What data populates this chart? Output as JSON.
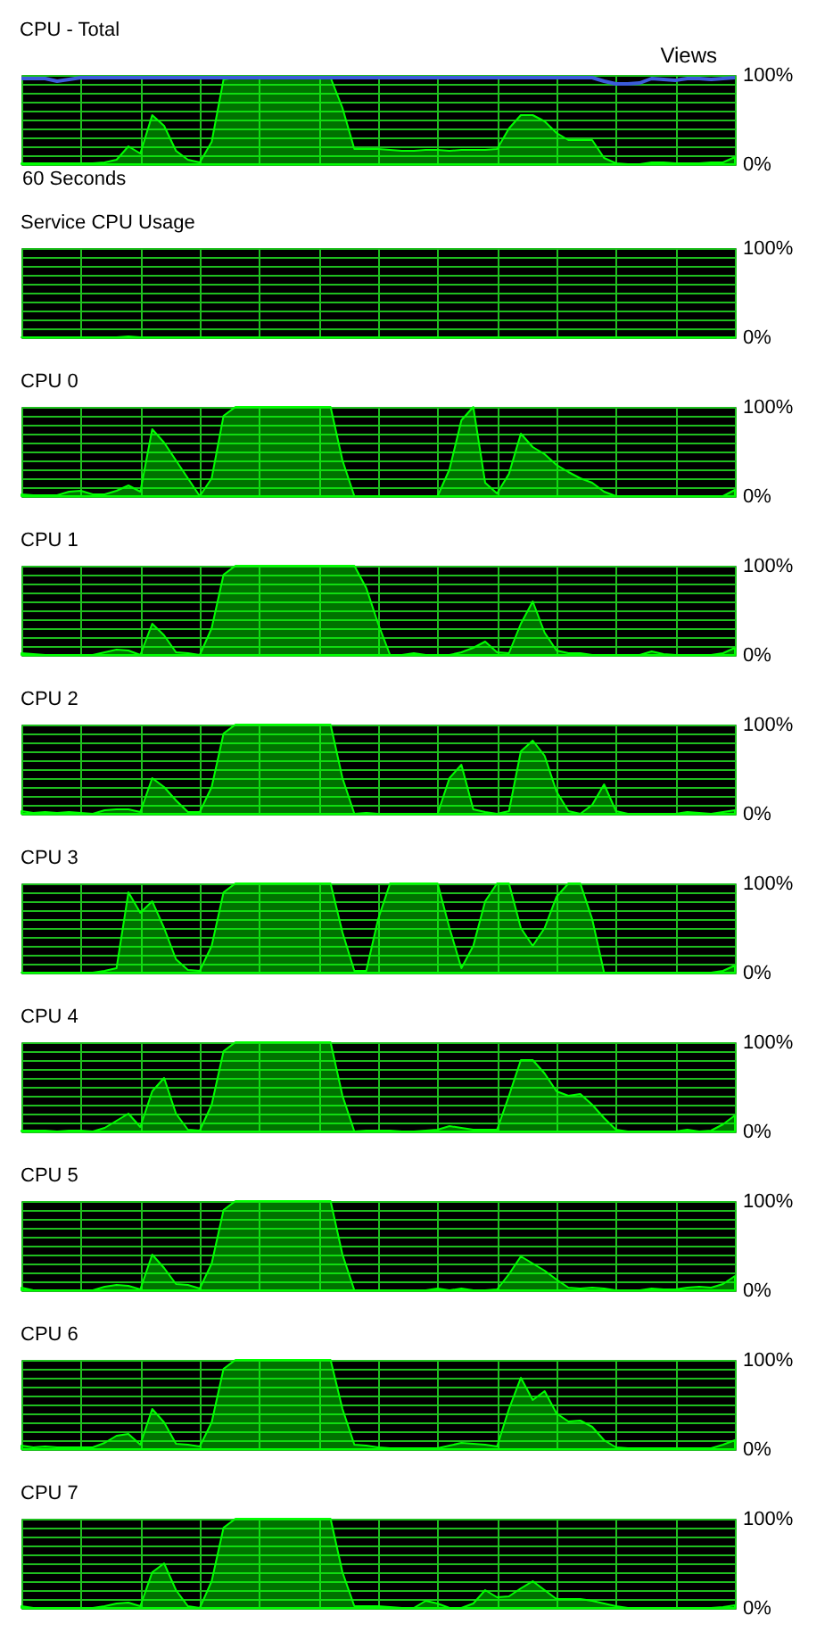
{
  "chart_data": [
    {
      "type": "area",
      "title": "CPU - Total",
      "xlabel": "60 Seconds",
      "annotations": [
        "Views"
      ],
      "grid": true,
      "tick_labels": "y",
      "ylim": [
        0,
        100
      ],
      "yticks": [
        {
          "value": 0,
          "label": "0%"
        },
        {
          "value": 10,
          "label": null
        },
        {
          "value": 20,
          "label": null
        },
        {
          "value": 30,
          "label": null
        },
        {
          "value": 40,
          "label": null
        },
        {
          "value": 50,
          "label": null
        },
        {
          "value": 60,
          "label": null
        },
        {
          "value": 70,
          "label": null
        },
        {
          "value": 80,
          "label": null
        },
        {
          "value": 90,
          "label": null
        },
        {
          "value": 100,
          "label": "100%"
        }
      ],
      "categories": [
        null,
        null,
        null,
        null,
        null,
        null,
        null,
        null,
        null,
        null,
        null,
        null,
        null,
        null,
        null,
        null,
        null,
        null,
        null,
        null,
        null,
        null,
        null,
        null,
        null,
        null,
        null,
        null,
        null,
        null,
        null,
        null,
        null,
        null,
        null,
        null,
        null,
        null,
        null,
        null,
        null,
        null,
        null,
        null,
        null,
        null,
        null,
        null,
        null,
        null,
        null,
        null,
        null,
        null,
        null,
        null,
        null,
        null,
        null,
        null,
        null
      ],
      "series": [
        {
          "color": "#00ff00",
          "values": [
            1,
            1,
            1,
            1,
            1,
            1,
            1,
            2,
            5,
            20,
            12,
            55,
            43,
            15,
            5,
            2,
            25,
            95,
            97,
            97,
            97,
            97,
            97,
            97,
            97,
            97,
            97,
            63,
            17,
            17,
            17,
            16,
            15,
            15,
            16,
            16,
            15,
            16,
            16,
            16,
            17,
            40,
            55,
            55,
            48,
            35,
            27,
            27,
            27,
            7,
            1,
            0,
            0,
            2,
            2,
            1,
            1,
            1,
            2,
            2,
            8
          ]
        },
        {
          "type": "line",
          "color": "#3b5bdb",
          "values": [
            96,
            96,
            96,
            93,
            95,
            97,
            97,
            97,
            97,
            97,
            97,
            97,
            97,
            97,
            97,
            97,
            97,
            97,
            97,
            97,
            97,
            97,
            97,
            97,
            97,
            97,
            97,
            97,
            97,
            97,
            97,
            97,
            97,
            97,
            97,
            97,
            97,
            97,
            97,
            97,
            97,
            97,
            97,
            97,
            97,
            97,
            97,
            97,
            97,
            93,
            90,
            90,
            91,
            96,
            95,
            94,
            96,
            96,
            95,
            96,
            97
          ]
        }
      ]
    },
    {
      "type": "area",
      "title": "Service CPU Usage",
      "grid": true,
      "tick_labels": "y",
      "ylim": [
        0,
        100
      ],
      "yticks": [
        {
          "value": 0,
          "label": "0%"
        },
        {
          "value": 10,
          "label": null
        },
        {
          "value": 20,
          "label": null
        },
        {
          "value": 30,
          "label": null
        },
        {
          "value": 40,
          "label": null
        },
        {
          "value": 50,
          "label": null
        },
        {
          "value": 60,
          "label": null
        },
        {
          "value": 70,
          "label": null
        },
        {
          "value": 80,
          "label": null
        },
        {
          "value": 90,
          "label": null
        },
        {
          "value": 100,
          "label": "100%"
        }
      ],
      "categories": [
        null,
        null,
        null,
        null,
        null,
        null,
        null,
        null,
        null,
        null,
        null,
        null,
        null,
        null,
        null,
        null,
        null,
        null,
        null,
        null,
        null,
        null,
        null,
        null,
        null,
        null,
        null,
        null,
        null,
        null,
        null,
        null,
        null,
        null,
        null,
        null,
        null,
        null,
        null,
        null,
        null,
        null,
        null,
        null,
        null,
        null,
        null,
        null,
        null,
        null,
        null,
        null,
        null,
        null,
        null,
        null,
        null,
        null,
        null,
        null,
        null
      ],
      "series": [
        {
          "color": "#00ff00",
          "values": [
            0,
            0,
            0,
            0,
            0,
            0,
            0,
            0,
            0,
            1,
            0,
            0,
            0,
            0,
            0,
            0,
            0,
            0,
            0,
            0,
            0,
            0,
            0,
            0,
            0,
            0,
            0,
            0,
            0,
            0,
            0,
            0,
            0,
            0,
            0,
            0,
            0,
            0,
            0,
            0,
            0,
            0,
            0,
            0,
            0,
            0,
            0,
            0,
            0,
            0,
            0,
            0,
            0,
            0,
            0,
            0,
            0,
            0,
            0,
            0,
            0
          ]
        }
      ]
    },
    {
      "type": "area",
      "title": "CPU 0",
      "grid": true,
      "tick_labels": "y",
      "ylim": [
        0,
        100
      ],
      "yticks": [
        {
          "value": 0,
          "label": "0%"
        },
        {
          "value": 10,
          "label": null
        },
        {
          "value": 20,
          "label": null
        },
        {
          "value": 30,
          "label": null
        },
        {
          "value": 40,
          "label": null
        },
        {
          "value": 50,
          "label": null
        },
        {
          "value": 60,
          "label": null
        },
        {
          "value": 70,
          "label": null
        },
        {
          "value": 80,
          "label": null
        },
        {
          "value": 90,
          "label": null
        },
        {
          "value": 100,
          "label": "100%"
        }
      ],
      "categories": [
        null,
        null,
        null,
        null,
        null,
        null,
        null,
        null,
        null,
        null,
        null,
        null,
        null,
        null,
        null,
        null,
        null,
        null,
        null,
        null,
        null,
        null,
        null,
        null,
        null,
        null,
        null,
        null,
        null,
        null,
        null,
        null,
        null,
        null,
        null,
        null,
        null,
        null,
        null,
        null,
        null,
        null,
        null,
        null,
        null,
        null,
        null,
        null,
        null,
        null,
        null,
        null,
        null,
        null,
        null,
        null,
        null,
        null,
        null,
        null,
        null
      ],
      "series": [
        {
          "color": "#00ff00",
          "values": [
            2,
            1,
            1,
            1,
            5,
            6,
            2,
            2,
            6,
            12,
            5,
            75,
            60,
            40,
            20,
            0,
            20,
            90,
            100,
            100,
            100,
            100,
            100,
            100,
            100,
            100,
            100,
            40,
            0,
            0,
            0,
            0,
            0,
            0,
            0,
            0,
            30,
            85,
            100,
            15,
            3,
            25,
            70,
            55,
            47,
            35,
            27,
            20,
            15,
            5,
            0,
            0,
            0,
            0,
            0,
            0,
            0,
            0,
            0,
            0,
            7
          ]
        }
      ]
    },
    {
      "type": "area",
      "title": "CPU 1",
      "grid": true,
      "tick_labels": "y",
      "ylim": [
        0,
        100
      ],
      "yticks": [
        {
          "value": 0,
          "label": "0%"
        },
        {
          "value": 10,
          "label": null
        },
        {
          "value": 20,
          "label": null
        },
        {
          "value": 30,
          "label": null
        },
        {
          "value": 40,
          "label": null
        },
        {
          "value": 50,
          "label": null
        },
        {
          "value": 60,
          "label": null
        },
        {
          "value": 70,
          "label": null
        },
        {
          "value": 80,
          "label": null
        },
        {
          "value": 90,
          "label": null
        },
        {
          "value": 100,
          "label": "100%"
        }
      ],
      "categories": [
        null,
        null,
        null,
        null,
        null,
        null,
        null,
        null,
        null,
        null,
        null,
        null,
        null,
        null,
        null,
        null,
        null,
        null,
        null,
        null,
        null,
        null,
        null,
        null,
        null,
        null,
        null,
        null,
        null,
        null,
        null,
        null,
        null,
        null,
        null,
        null,
        null,
        null,
        null,
        null,
        null,
        null,
        null,
        null,
        null,
        null,
        null,
        null,
        null,
        null,
        null,
        null,
        null,
        null,
        null,
        null,
        null,
        null,
        null,
        null,
        null
      ],
      "series": [
        {
          "color": "#00ff00",
          "values": [
            2,
            1,
            0,
            0,
            0,
            0,
            0,
            3,
            6,
            5,
            0,
            35,
            22,
            3,
            2,
            0,
            30,
            90,
            100,
            100,
            100,
            100,
            100,
            100,
            100,
            100,
            100,
            100,
            100,
            75,
            35,
            0,
            0,
            2,
            0,
            0,
            0,
            3,
            8,
            15,
            3,
            2,
            35,
            60,
            25,
            5,
            2,
            2,
            0,
            0,
            0,
            0,
            0,
            4,
            1,
            0,
            0,
            0,
            0,
            2,
            8
          ]
        }
      ]
    },
    {
      "type": "area",
      "title": "CPU 2",
      "grid": true,
      "tick_labels": "y",
      "ylim": [
        0,
        100
      ],
      "yticks": [
        {
          "value": 0,
          "label": "0%"
        },
        {
          "value": 10,
          "label": null
        },
        {
          "value": 20,
          "label": null
        },
        {
          "value": 30,
          "label": null
        },
        {
          "value": 40,
          "label": null
        },
        {
          "value": 50,
          "label": null
        },
        {
          "value": 60,
          "label": null
        },
        {
          "value": 70,
          "label": null
        },
        {
          "value": 80,
          "label": null
        },
        {
          "value": 90,
          "label": null
        },
        {
          "value": 100,
          "label": "100%"
        }
      ],
      "categories": [
        null,
        null,
        null,
        null,
        null,
        null,
        null,
        null,
        null,
        null,
        null,
        null,
        null,
        null,
        null,
        null,
        null,
        null,
        null,
        null,
        null,
        null,
        null,
        null,
        null,
        null,
        null,
        null,
        null,
        null,
        null,
        null,
        null,
        null,
        null,
        null,
        null,
        null,
        null,
        null,
        null,
        null,
        null,
        null,
        null,
        null,
        null,
        null,
        null,
        null,
        null,
        null,
        null,
        null,
        null,
        null,
        null,
        null,
        null,
        null,
        null
      ],
      "series": [
        {
          "color": "#00ff00",
          "values": [
            3,
            1,
            2,
            1,
            2,
            1,
            0,
            4,
            5,
            5,
            2,
            40,
            30,
            15,
            2,
            2,
            30,
            90,
            100,
            100,
            100,
            100,
            100,
            100,
            100,
            100,
            100,
            40,
            0,
            1,
            0,
            0,
            0,
            0,
            0,
            0,
            40,
            55,
            5,
            2,
            0,
            3,
            70,
            82,
            65,
            25,
            3,
            0,
            10,
            33,
            3,
            0,
            0,
            0,
            0,
            0,
            2,
            1,
            0,
            2,
            4
          ]
        }
      ]
    },
    {
      "type": "area",
      "title": "CPU 3",
      "grid": true,
      "tick_labels": "y",
      "ylim": [
        0,
        100
      ],
      "yticks": [
        {
          "value": 0,
          "label": "0%"
        },
        {
          "value": 10,
          "label": null
        },
        {
          "value": 20,
          "label": null
        },
        {
          "value": 30,
          "label": null
        },
        {
          "value": 40,
          "label": null
        },
        {
          "value": 50,
          "label": null
        },
        {
          "value": 60,
          "label": null
        },
        {
          "value": 70,
          "label": null
        },
        {
          "value": 80,
          "label": null
        },
        {
          "value": 90,
          "label": null
        },
        {
          "value": 100,
          "label": "100%"
        }
      ],
      "categories": [
        null,
        null,
        null,
        null,
        null,
        null,
        null,
        null,
        null,
        null,
        null,
        null,
        null,
        null,
        null,
        null,
        null,
        null,
        null,
        null,
        null,
        null,
        null,
        null,
        null,
        null,
        null,
        null,
        null,
        null,
        null,
        null,
        null,
        null,
        null,
        null,
        null,
        null,
        null,
        null,
        null,
        null,
        null,
        null,
        null,
        null,
        null,
        null,
        null,
        null,
        null,
        null,
        null,
        null,
        null,
        null,
        null,
        null,
        null,
        null,
        null
      ],
      "series": [
        {
          "color": "#00ff00",
          "values": [
            0,
            0,
            0,
            0,
            0,
            0,
            0,
            2,
            5,
            90,
            67,
            80,
            50,
            15,
            3,
            2,
            30,
            90,
            100,
            100,
            100,
            100,
            100,
            100,
            100,
            100,
            100,
            45,
            2,
            2,
            60,
            100,
            100,
            100,
            100,
            100,
            50,
            5,
            30,
            80,
            100,
            100,
            50,
            30,
            50,
            85,
            100,
            100,
            60,
            0,
            0,
            0,
            0,
            0,
            0,
            0,
            0,
            0,
            0,
            2,
            8
          ]
        }
      ]
    },
    {
      "type": "area",
      "title": "CPU 4",
      "grid": true,
      "tick_labels": "y",
      "ylim": [
        0,
        100
      ],
      "yticks": [
        {
          "value": 0,
          "label": "0%"
        },
        {
          "value": 10,
          "label": null
        },
        {
          "value": 20,
          "label": null
        },
        {
          "value": 30,
          "label": null
        },
        {
          "value": 40,
          "label": null
        },
        {
          "value": 50,
          "label": null
        },
        {
          "value": 60,
          "label": null
        },
        {
          "value": 70,
          "label": null
        },
        {
          "value": 80,
          "label": null
        },
        {
          "value": 90,
          "label": null
        },
        {
          "value": 100,
          "label": "100%"
        }
      ],
      "categories": [
        null,
        null,
        null,
        null,
        null,
        null,
        null,
        null,
        null,
        null,
        null,
        null,
        null,
        null,
        null,
        null,
        null,
        null,
        null,
        null,
        null,
        null,
        null,
        null,
        null,
        null,
        null,
        null,
        null,
        null,
        null,
        null,
        null,
        null,
        null,
        null,
        null,
        null,
        null,
        null,
        null,
        null,
        null,
        null,
        null,
        null,
        null,
        null,
        null,
        null,
        null,
        null,
        null,
        null,
        null,
        null,
        null,
        null,
        null,
        null,
        null
      ],
      "series": [
        {
          "color": "#00ff00",
          "values": [
            1,
            1,
            1,
            0,
            1,
            1,
            0,
            4,
            12,
            20,
            5,
            45,
            60,
            20,
            2,
            1,
            30,
            90,
            100,
            100,
            100,
            100,
            100,
            100,
            100,
            100,
            100,
            40,
            0,
            1,
            1,
            1,
            0,
            0,
            1,
            2,
            6,
            4,
            2,
            2,
            2,
            40,
            80,
            80,
            65,
            45,
            40,
            42,
            30,
            15,
            2,
            0,
            0,
            0,
            0,
            0,
            2,
            0,
            1,
            8,
            18
          ]
        }
      ]
    },
    {
      "type": "area",
      "title": "CPU 5",
      "grid": true,
      "tick_labels": "y",
      "ylim": [
        0,
        100
      ],
      "yticks": [
        {
          "value": 0,
          "label": "0%"
        },
        {
          "value": 10,
          "label": null
        },
        {
          "value": 20,
          "label": null
        },
        {
          "value": 30,
          "label": null
        },
        {
          "value": 40,
          "label": null
        },
        {
          "value": 50,
          "label": null
        },
        {
          "value": 60,
          "label": null
        },
        {
          "value": 70,
          "label": null
        },
        {
          "value": 80,
          "label": null
        },
        {
          "value": 90,
          "label": null
        },
        {
          "value": 100,
          "label": "100%"
        }
      ],
      "categories": [
        null,
        null,
        null,
        null,
        null,
        null,
        null,
        null,
        null,
        null,
        null,
        null,
        null,
        null,
        null,
        null,
        null,
        null,
        null,
        null,
        null,
        null,
        null,
        null,
        null,
        null,
        null,
        null,
        null,
        null,
        null,
        null,
        null,
        null,
        null,
        null,
        null,
        null,
        null,
        null,
        null,
        null,
        null,
        null,
        null,
        null,
        null,
        null,
        null,
        null,
        null,
        null,
        null,
        null,
        null,
        null,
        null,
        null,
        null,
        null,
        null
      ],
      "series": [
        {
          "color": "#00ff00",
          "values": [
            3,
            0,
            0,
            0,
            0,
            0,
            0,
            4,
            6,
            5,
            1,
            40,
            25,
            7,
            6,
            2,
            30,
            90,
            100,
            100,
            100,
            100,
            100,
            100,
            100,
            100,
            100,
            40,
            0,
            0,
            0,
            0,
            0,
            0,
            0,
            2,
            0,
            2,
            0,
            0,
            1,
            18,
            38,
            30,
            22,
            12,
            3,
            2,
            3,
            2,
            0,
            0,
            0,
            2,
            1,
            1,
            3,
            4,
            3,
            7,
            16
          ]
        }
      ]
    },
    {
      "type": "area",
      "title": "CPU 6",
      "grid": true,
      "tick_labels": "y",
      "ylim": [
        0,
        100
      ],
      "yticks": [
        {
          "value": 0,
          "label": "0%"
        },
        {
          "value": 10,
          "label": null
        },
        {
          "value": 20,
          "label": null
        },
        {
          "value": 30,
          "label": null
        },
        {
          "value": 40,
          "label": null
        },
        {
          "value": 50,
          "label": null
        },
        {
          "value": 60,
          "label": null
        },
        {
          "value": 70,
          "label": null
        },
        {
          "value": 80,
          "label": null
        },
        {
          "value": 90,
          "label": null
        },
        {
          "value": 100,
          "label": "100%"
        }
      ],
      "categories": [
        null,
        null,
        null,
        null,
        null,
        null,
        null,
        null,
        null,
        null,
        null,
        null,
        null,
        null,
        null,
        null,
        null,
        null,
        null,
        null,
        null,
        null,
        null,
        null,
        null,
        null,
        null,
        null,
        null,
        null,
        null,
        null,
        null,
        null,
        null,
        null,
        null,
        null,
        null,
        null,
        null,
        null,
        null,
        null,
        null,
        null,
        null,
        null,
        null,
        null,
        null,
        null,
        null,
        null,
        null,
        null,
        null,
        null,
        null,
        null,
        null
      ],
      "series": [
        {
          "color": "#00ff00",
          "values": [
            4,
            2,
            3,
            2,
            2,
            2,
            2,
            7,
            15,
            17,
            5,
            45,
            30,
            6,
            5,
            3,
            30,
            90,
            100,
            100,
            100,
            100,
            100,
            100,
            100,
            100,
            100,
            45,
            5,
            4,
            2,
            1,
            1,
            1,
            1,
            1,
            4,
            7,
            6,
            5,
            3,
            45,
            80,
            55,
            65,
            40,
            31,
            32,
            25,
            10,
            2,
            1,
            1,
            1,
            1,
            1,
            1,
            1,
            1,
            5,
            10
          ]
        }
      ]
    },
    {
      "type": "area",
      "title": "CPU 7",
      "grid": true,
      "tick_labels": "y",
      "ylim": [
        0,
        100
      ],
      "yticks": [
        {
          "value": 0,
          "label": "0%"
        },
        {
          "value": 10,
          "label": null
        },
        {
          "value": 20,
          "label": null
        },
        {
          "value": 30,
          "label": null
        },
        {
          "value": 40,
          "label": null
        },
        {
          "value": 50,
          "label": null
        },
        {
          "value": 60,
          "label": null
        },
        {
          "value": 70,
          "label": null
        },
        {
          "value": 80,
          "label": null
        },
        {
          "value": 90,
          "label": null
        },
        {
          "value": 100,
          "label": "100%"
        }
      ],
      "categories": [
        null,
        null,
        null,
        null,
        null,
        null,
        null,
        null,
        null,
        null,
        null,
        null,
        null,
        null,
        null,
        null,
        null,
        null,
        null,
        null,
        null,
        null,
        null,
        null,
        null,
        null,
        null,
        null,
        null,
        null,
        null,
        null,
        null,
        null,
        null,
        null,
        null,
        null,
        null,
        null,
        null,
        null,
        null,
        null,
        null,
        null,
        null,
        null,
        null,
        null,
        null,
        null,
        null,
        null,
        null,
        null,
        null,
        null,
        null,
        null,
        null
      ],
      "series": [
        {
          "color": "#00ff00",
          "values": [
            2,
            0,
            0,
            0,
            0,
            0,
            0,
            2,
            5,
            6,
            2,
            40,
            50,
            20,
            2,
            0,
            30,
            90,
            100,
            100,
            100,
            100,
            100,
            100,
            100,
            100,
            100,
            40,
            2,
            2,
            2,
            1,
            0,
            0,
            8,
            5,
            0,
            0,
            5,
            20,
            12,
            13,
            22,
            30,
            20,
            10,
            10,
            10,
            8,
            5,
            2,
            0,
            0,
            0,
            0,
            0,
            0,
            0,
            0,
            1,
            3
          ]
        }
      ]
    }
  ]
}
